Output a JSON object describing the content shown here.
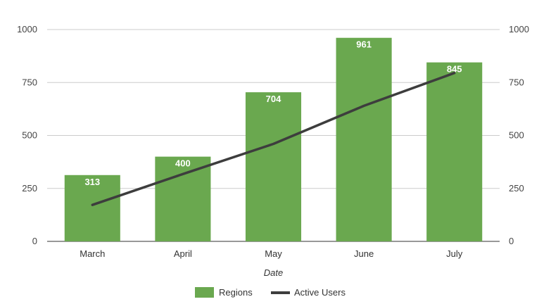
{
  "chart_data": {
    "type": "bar",
    "categories": [
      "March",
      "April",
      "May",
      "June",
      "July"
    ],
    "series": [
      {
        "name": "Regions",
        "type": "bar",
        "axis": "left",
        "values": [
          313,
          400,
          704,
          961,
          845
        ],
        "color": "#6aa84f",
        "show_labels": true
      },
      {
        "name": "Active Users",
        "type": "line",
        "axis": "right",
        "values": [
          172,
          318,
          460,
          640,
          795
        ],
        "color": "#3d3d3d"
      }
    ],
    "title": "",
    "xlabel": "Date",
    "ylabel": "",
    "ylim": [
      0,
      1000
    ],
    "y2lim": [
      0,
      1000
    ],
    "yticks": [
      0,
      250,
      500,
      750,
      1000
    ],
    "y2ticks": [
      0,
      250,
      500,
      750,
      1000
    ],
    "grid": true,
    "legend": "bottom"
  }
}
